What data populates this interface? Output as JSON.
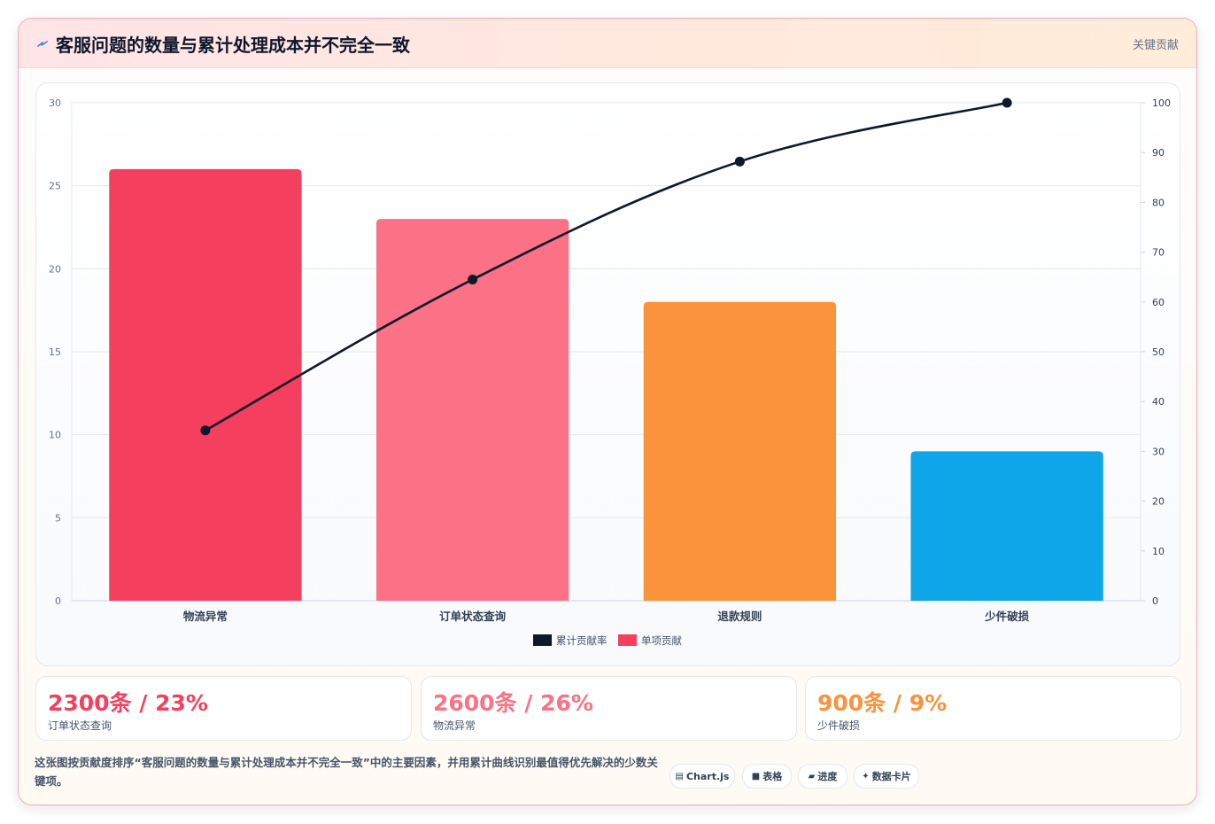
{
  "header": {
    "title": "客服问题的数量与累计处理成本并不完全一致",
    "tag": "关键贡献"
  },
  "chart_data": {
    "type": "bar",
    "categories": [
      "物流异常",
      "订单状态查询",
      "退款规则",
      "少件破损"
    ],
    "series": [
      {
        "name": "单项贡献",
        "type": "bar",
        "axis": "left",
        "values": [
          26,
          23,
          18,
          9
        ],
        "colors": [
          "#f43f5e",
          "#fb7185",
          "#fb923c",
          "#0ea5e9"
        ]
      },
      {
        "name": "累计贡献率",
        "type": "line",
        "axis": "right",
        "values": [
          34.2,
          64.5,
          88.2,
          100
        ],
        "color": "#0f172a"
      }
    ],
    "y_left": {
      "min": 0,
      "max": 30,
      "ticks": [
        "0",
        "5",
        "10",
        "15",
        "20",
        "25",
        "30"
      ]
    },
    "y_right": {
      "min": 0,
      "max": 100,
      "ticks": [
        "0",
        "10",
        "20",
        "30",
        "40",
        "50",
        "60",
        "70",
        "80",
        "90",
        "100"
      ]
    },
    "legend": [
      {
        "name": "累计贡献率",
        "color": "#0f172a"
      },
      {
        "name": "单项贡献",
        "color": "#f43f5e"
      }
    ],
    "legend_position": "bottom",
    "grid": true
  },
  "kpis": [
    {
      "value": "2300条 / 23%",
      "label": "订单状态查询",
      "color": "#f43f5e"
    },
    {
      "value": "2600条 / 26%",
      "label": "物流异常",
      "color": "#fb7185"
    },
    {
      "value": "900条 / 9%",
      "label": "少件破损",
      "color": "#fb923c"
    }
  ],
  "description": "这张图按贡献度排序“客服问题的数量与累计处理成本并不完全一致”中的主要因素，并用累计曲线识别最值得优先解决的少数关键项。",
  "chips": [
    {
      "icon": "chart-icon",
      "glyph": "▤",
      "label": "Chart.js"
    },
    {
      "icon": "table-icon",
      "glyph": "■",
      "label": "表格"
    },
    {
      "icon": "progress-icon",
      "glyph": "▰",
      "label": "进度"
    },
    {
      "icon": "sparkle-icon",
      "glyph": "✦",
      "label": "数据卡片"
    }
  ]
}
